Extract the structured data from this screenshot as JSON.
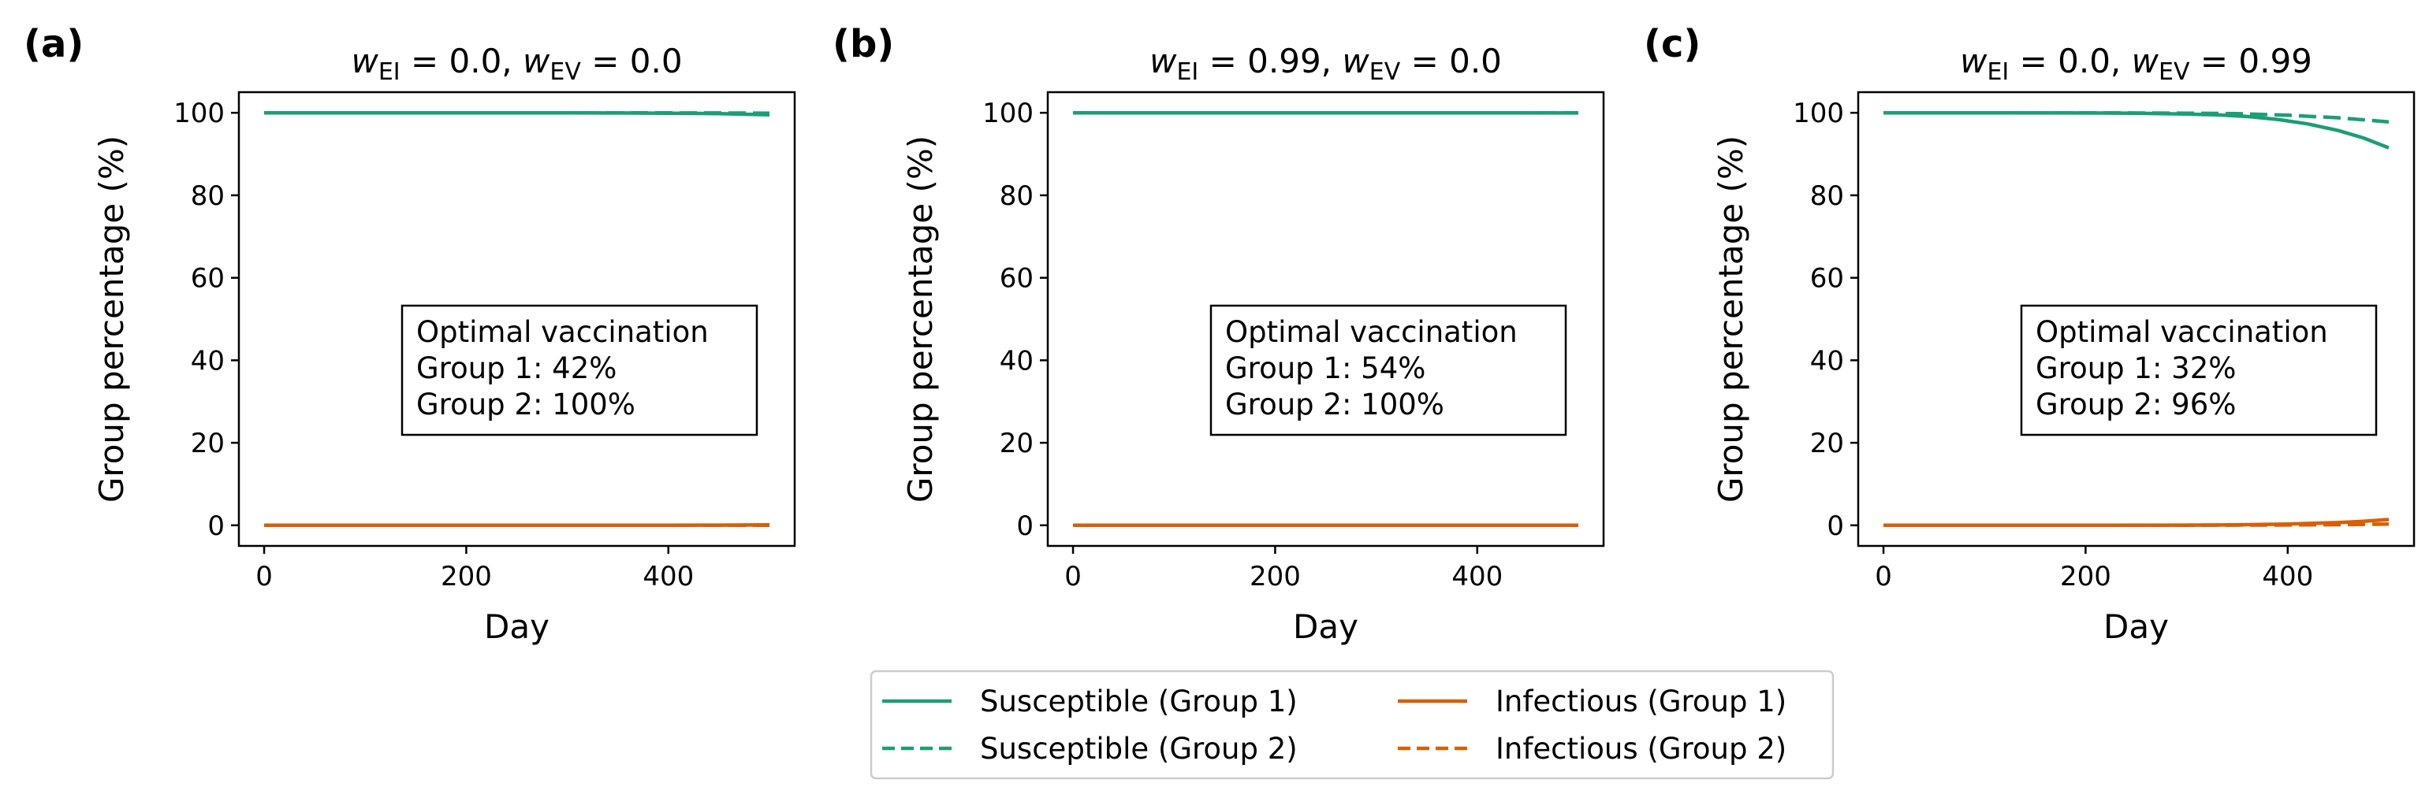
{
  "legend": {
    "entries": [
      {
        "label": "Susceptible (Group 1)",
        "color": "#1b9e77",
        "dash": "solid"
      },
      {
        "label": "Infectious (Group 1)",
        "color": "#d95f02",
        "dash": "solid"
      },
      {
        "label": "Susceptible (Group 2)",
        "color": "#1b9e77",
        "dash": "dashed"
      },
      {
        "label": "Infectious (Group 2)",
        "color": "#d95f02",
        "dash": "dashed"
      }
    ],
    "placement": "bottom-center"
  },
  "chart_data": [
    {
      "type": "line",
      "panel_label": "(a)",
      "title_parts": [
        "w",
        "EI",
        " = 0.0, ",
        "w",
        "EV",
        " = 0.0"
      ],
      "xlabel": "Day",
      "ylabel": "Group percentage (%)",
      "xlim": [
        -25,
        525
      ],
      "ylim": [
        -5,
        105
      ],
      "xticks": [
        0,
        200,
        400
      ],
      "yticks": [
        0,
        20,
        40,
        60,
        80,
        100
      ],
      "grid": false,
      "annotation": [
        "Optimal vaccination",
        "Group 1: 42%",
        "Group 2: 100%"
      ],
      "series": [
        {
          "name": "Susceptible (Group 1)",
          "color": "#1b9e77",
          "dash": "solid",
          "x": [
            0,
            100,
            200,
            300,
            350,
            400,
            450,
            500
          ],
          "y": [
            100,
            100,
            100,
            99.98,
            99.95,
            99.9,
            99.8,
            99.5
          ]
        },
        {
          "name": "Susceptible (Group 2)",
          "color": "#1b9e77",
          "dash": "dashed",
          "x": [
            0,
            100,
            200,
            300,
            400,
            450,
            500
          ],
          "y": [
            100,
            100,
            100,
            100,
            99.97,
            99.95,
            99.9
          ]
        },
        {
          "name": "Infectious (Group 1)",
          "color": "#d95f02",
          "dash": "solid",
          "x": [
            0,
            100,
            200,
            300,
            400,
            450,
            500
          ],
          "y": [
            0,
            0,
            0,
            0.01,
            0.02,
            0.05,
            0.1
          ]
        },
        {
          "name": "Infectious (Group 2)",
          "color": "#d95f02",
          "dash": "dashed",
          "x": [
            0,
            100,
            200,
            300,
            400,
            500
          ],
          "y": [
            0,
            0,
            0,
            0,
            0,
            0.02
          ]
        }
      ]
    },
    {
      "type": "line",
      "panel_label": "(b)",
      "title_parts": [
        "w",
        "EI",
        " = 0.99, ",
        "w",
        "EV",
        " = 0.0"
      ],
      "xlabel": "Day",
      "ylabel": "Group percentage (%)",
      "xlim": [
        -25,
        525
      ],
      "ylim": [
        -5,
        105
      ],
      "xticks": [
        0,
        200,
        400
      ],
      "yticks": [
        0,
        20,
        40,
        60,
        80,
        100
      ],
      "grid": false,
      "annotation": [
        "Optimal vaccination",
        "Group 1: 54%",
        "Group 2: 100%"
      ],
      "series": [
        {
          "name": "Susceptible (Group 1)",
          "color": "#1b9e77",
          "dash": "solid",
          "x": [
            0,
            100,
            200,
            300,
            400,
            500
          ],
          "y": [
            100,
            100,
            100,
            100,
            100,
            99.95
          ]
        },
        {
          "name": "Susceptible (Group 2)",
          "color": "#1b9e77",
          "dash": "dashed",
          "x": [
            0,
            100,
            200,
            300,
            400,
            500
          ],
          "y": [
            100,
            100,
            100,
            100,
            100,
            100
          ]
        },
        {
          "name": "Infectious (Group 1)",
          "color": "#d95f02",
          "dash": "solid",
          "x": [
            0,
            100,
            200,
            300,
            400,
            500
          ],
          "y": [
            0,
            0,
            0,
            0,
            0,
            0
          ]
        },
        {
          "name": "Infectious (Group 2)",
          "color": "#d95f02",
          "dash": "dashed",
          "x": [
            0,
            100,
            200,
            300,
            400,
            500
          ],
          "y": [
            0,
            0,
            0,
            0,
            0,
            0
          ]
        }
      ]
    },
    {
      "type": "line",
      "panel_label": "(c)",
      "title_parts": [
        "w",
        "EI",
        " = 0.0, ",
        "w",
        "EV",
        " = 0.99"
      ],
      "xlabel": "Day",
      "ylabel": "Group percentage (%)",
      "xlim": [
        -25,
        525
      ],
      "ylim": [
        -5,
        105
      ],
      "xticks": [
        0,
        200,
        400
      ],
      "yticks": [
        0,
        20,
        40,
        60,
        80,
        100
      ],
      "grid": false,
      "annotation": [
        "Optimal vaccination",
        "Group 1: 32%",
        "Group 2: 96%"
      ],
      "series": [
        {
          "name": "Susceptible (Group 1)",
          "color": "#1b9e77",
          "dash": "solid",
          "x": [
            0,
            100,
            200,
            250,
            300,
            330,
            360,
            390,
            420,
            450,
            475,
            500
          ],
          "y": [
            100,
            100,
            99.95,
            99.9,
            99.7,
            99.5,
            99.1,
            98.4,
            97.3,
            95.7,
            93.9,
            91.5
          ]
        },
        {
          "name": "Susceptible (Group 2)",
          "color": "#1b9e77",
          "dash": "dashed",
          "x": [
            0,
            100,
            200,
            300,
            350,
            400,
            450,
            500
          ],
          "y": [
            100,
            100,
            100,
            99.9,
            99.8,
            99.4,
            98.8,
            97.8
          ]
        },
        {
          "name": "Infectious (Group 1)",
          "color": "#d95f02",
          "dash": "solid",
          "x": [
            0,
            100,
            200,
            300,
            350,
            400,
            450,
            475,
            500
          ],
          "y": [
            0,
            0,
            0,
            0.05,
            0.12,
            0.3,
            0.65,
            0.95,
            1.4
          ]
        },
        {
          "name": "Infectious (Group 2)",
          "color": "#d95f02",
          "dash": "dashed",
          "x": [
            0,
            100,
            200,
            300,
            400,
            450,
            500
          ],
          "y": [
            0,
            0,
            0,
            0.02,
            0.08,
            0.15,
            0.3
          ]
        }
      ]
    }
  ]
}
